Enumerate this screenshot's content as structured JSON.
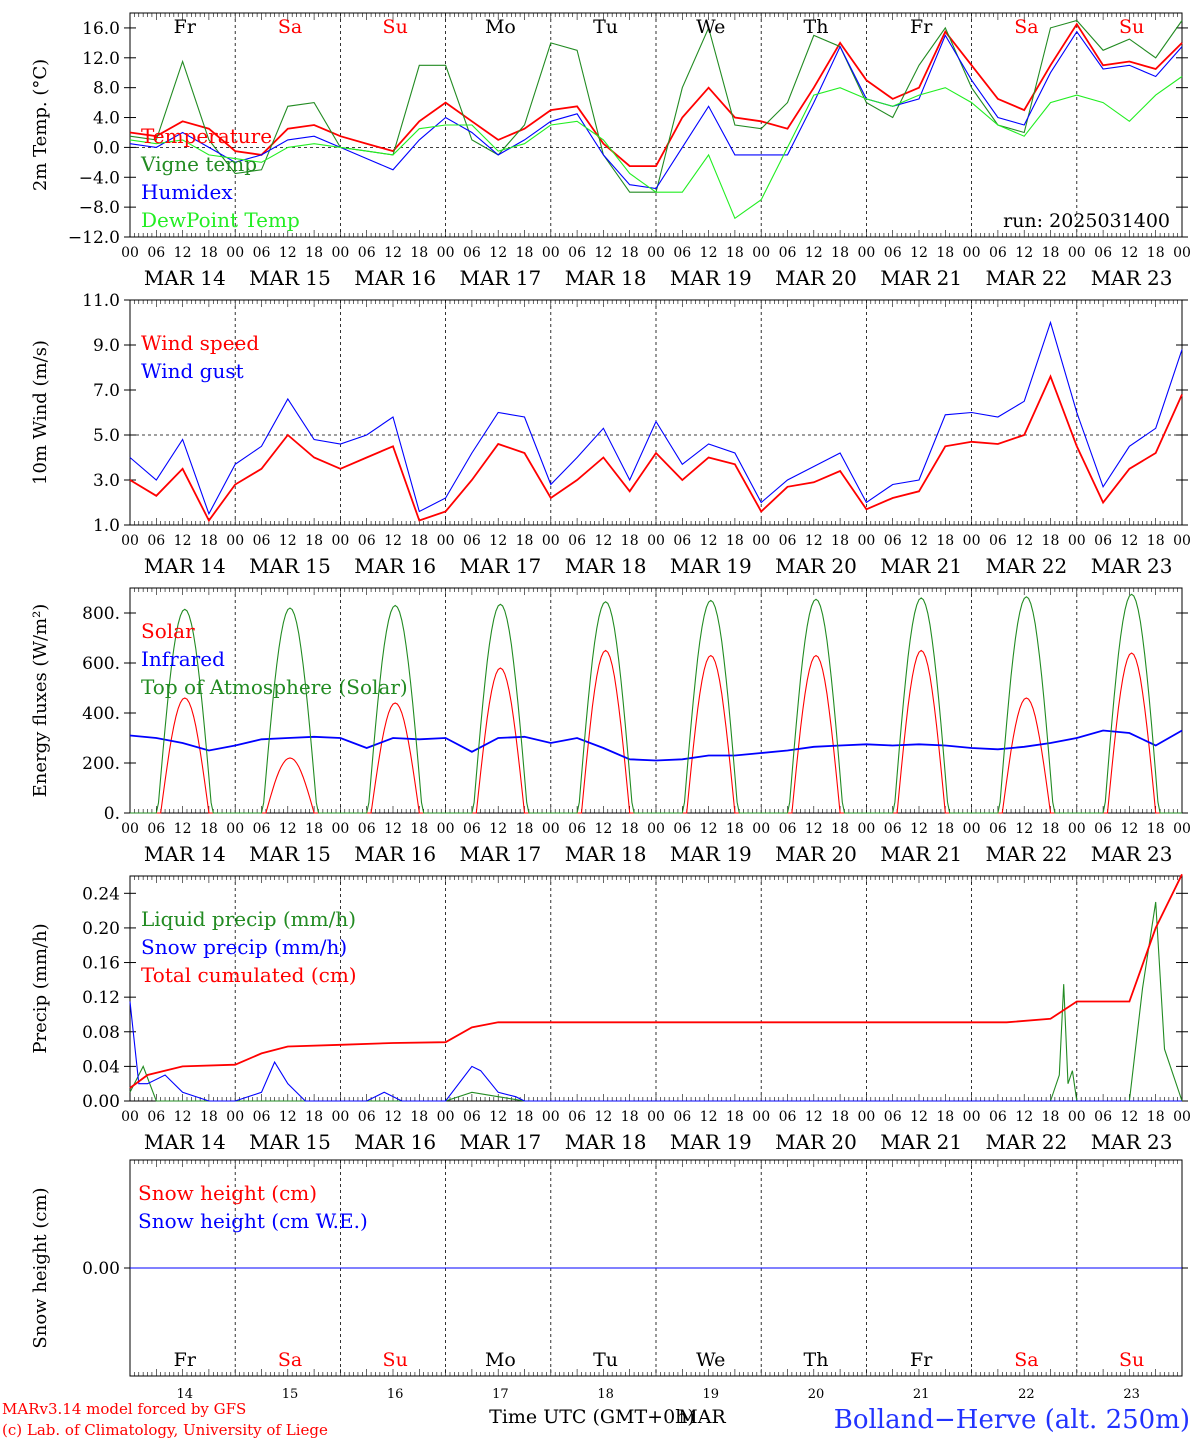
{
  "colors": {
    "red": "#ff0000",
    "green": "#228b22",
    "blue": "#0000ff",
    "light_green": "#22ee22",
    "black": "#000000"
  },
  "chart_data": [
    {
      "id": "temp",
      "type": "line",
      "ylabel": "2m Temp. (°C)",
      "ylim": [
        -12,
        18
      ],
      "ticks": [
        "16.0",
        "12.0",
        "8.0",
        "4.0",
        "0.0",
        "−4.0",
        "−8.0",
        "−12.0"
      ],
      "tick_values": [
        16,
        12,
        8,
        4,
        0,
        -4,
        -8,
        -12
      ],
      "dashed_ref": 0,
      "annotation": "run: 2025031400",
      "series": [
        {
          "name": "Temperature",
          "color": "#ff0000",
          "x": [
            0,
            6,
            12,
            18,
            24,
            30,
            36,
            42,
            48,
            54,
            60,
            66,
            72,
            78,
            84,
            90,
            96,
            102,
            108,
            114,
            120,
            126,
            132,
            138,
            144,
            150,
            156,
            162,
            168,
            174,
            180,
            186,
            192,
            198,
            204,
            210,
            216,
            222,
            228,
            234,
            240
          ],
          "y": [
            2,
            1.5,
            3.5,
            2.5,
            -0.5,
            -1,
            2.5,
            3,
            1.5,
            0.5,
            -0.5,
            3.5,
            6,
            3.5,
            1,
            2.5,
            5,
            5.5,
            0.5,
            -2.5,
            -2.5,
            4,
            8,
            4,
            3.5,
            2.5,
            8,
            14,
            9,
            6.5,
            8,
            15.5,
            11,
            6.5,
            5,
            11,
            16.5,
            11,
            11.5,
            10.5,
            14
          ]
        },
        {
          "name": "Vigne temp",
          "color": "#228b22",
          "x": [
            0,
            6,
            12,
            18,
            24,
            30,
            36,
            42,
            48,
            54,
            60,
            66,
            72,
            78,
            84,
            90,
            96,
            102,
            108,
            114,
            120,
            126,
            132,
            138,
            144,
            150,
            156,
            162,
            168,
            174,
            180,
            186,
            192,
            198,
            204,
            210,
            216,
            222,
            228,
            234,
            240
          ],
          "y": [
            1.5,
            1,
            11.5,
            1,
            -3.5,
            -3,
            5.5,
            6,
            0,
            -0.5,
            -1,
            11,
            11,
            1,
            -1,
            3,
            14,
            13,
            -1,
            -6,
            -6,
            8,
            16,
            3,
            2.5,
            6,
            15,
            13.5,
            6,
            4,
            11,
            16,
            8,
            3,
            2,
            16,
            17,
            13,
            14.5,
            12,
            17
          ]
        },
        {
          "name": "Humidex",
          "color": "#0000ff",
          "x": [
            0,
            6,
            12,
            18,
            24,
            30,
            36,
            42,
            48,
            54,
            60,
            66,
            72,
            78,
            84,
            90,
            96,
            102,
            108,
            114,
            120,
            126,
            132,
            138,
            144,
            150,
            156,
            162,
            168,
            174,
            180,
            186,
            192,
            198,
            204,
            210,
            216,
            222,
            228,
            234,
            240
          ],
          "y": [
            0.5,
            0,
            2,
            0,
            -2,
            -1,
            1,
            1.5,
            0,
            -1.5,
            -3,
            1,
            4,
            2,
            -1,
            1,
            3.5,
            4.5,
            -1,
            -5,
            -5.5,
            0,
            5.5,
            -1,
            -1,
            -1,
            6,
            13.5,
            6.5,
            5.5,
            6.5,
            15,
            9,
            4,
            3,
            10,
            15.5,
            10.5,
            11,
            9.5,
            13.5
          ]
        },
        {
          "name": "DewPoint Temp",
          "color": "#22ee22",
          "x": [
            0,
            6,
            12,
            18,
            24,
            30,
            36,
            42,
            48,
            54,
            60,
            66,
            72,
            78,
            84,
            90,
            96,
            102,
            108,
            114,
            120,
            126,
            132,
            138,
            144,
            150,
            156,
            162,
            168,
            174,
            180,
            186,
            192,
            198,
            204,
            210,
            216,
            222,
            228,
            234,
            240
          ],
          "y": [
            1,
            0.5,
            1,
            -1,
            -1.5,
            -2,
            0,
            0.5,
            0,
            -0.5,
            -1,
            2.5,
            3,
            3,
            -0.5,
            0.5,
            3,
            3.5,
            1,
            -3.5,
            -6,
            -6,
            -1,
            -9.5,
            -7,
            0,
            7,
            8,
            6.5,
            5.5,
            7,
            8,
            6,
            3,
            1.5,
            6,
            7,
            6,
            3.5,
            7,
            9.5
          ]
        }
      ]
    },
    {
      "id": "wind",
      "type": "line",
      "ylabel": "10m Wind (m/s)",
      "ylim": [
        1,
        11
      ],
      "ticks": [
        "11.0",
        "9.0",
        "7.0",
        "5.0",
        "3.0",
        "1.0"
      ],
      "tick_values": [
        11,
        9,
        7,
        5,
        3,
        1
      ],
      "dashed_ref": 5,
      "series": [
        {
          "name": "Wind speed",
          "color": "#ff0000",
          "x": [
            0,
            6,
            12,
            18,
            24,
            30,
            36,
            42,
            48,
            54,
            60,
            66,
            72,
            78,
            84,
            90,
            96,
            102,
            108,
            114,
            120,
            126,
            132,
            138,
            144,
            150,
            156,
            162,
            168,
            174,
            180,
            186,
            192,
            198,
            204,
            210,
            216,
            222,
            228,
            234,
            240
          ],
          "y": [
            3,
            2.3,
            3.5,
            1.2,
            2.8,
            3.5,
            5,
            4,
            3.5,
            4,
            4.5,
            1.2,
            1.6,
            3,
            4.6,
            4.2,
            2.2,
            3,
            4,
            2.5,
            4.2,
            3,
            4,
            3.7,
            1.6,
            2.7,
            2.9,
            3.4,
            1.7,
            2.2,
            2.5,
            4.5,
            4.7,
            4.6,
            5,
            7.6,
            4.5,
            2,
            3.5,
            4.2,
            6.8
          ]
        },
        {
          "name": "Wind gust",
          "color": "#0000ff",
          "x": [
            0,
            6,
            12,
            18,
            24,
            30,
            36,
            42,
            48,
            54,
            60,
            66,
            72,
            78,
            84,
            90,
            96,
            102,
            108,
            114,
            120,
            126,
            132,
            138,
            144,
            150,
            156,
            162,
            168,
            174,
            180,
            186,
            192,
            198,
            204,
            210,
            216,
            222,
            228,
            234,
            240
          ],
          "y": [
            4,
            3,
            4.8,
            1.5,
            3.7,
            4.5,
            6.6,
            4.8,
            4.6,
            5,
            5.8,
            1.6,
            2.2,
            4.2,
            6,
            5.8,
            2.8,
            4,
            5.3,
            3,
            5.6,
            3.7,
            4.6,
            4.2,
            2,
            3,
            3.6,
            4.2,
            2,
            2.8,
            3,
            5.9,
            6,
            5.8,
            6.5,
            10,
            6,
            2.7,
            4.5,
            5.3,
            8.8
          ]
        }
      ]
    },
    {
      "id": "energy",
      "type": "line",
      "ylabel": "Energy fluxes (W/m²)",
      "ylim": [
        0,
        900
      ],
      "ticks": [
        "800.",
        "600.",
        "400.",
        "200.",
        "0."
      ],
      "tick_values": [
        800,
        600,
        400,
        200,
        0
      ],
      "series": [
        {
          "name": "Solar",
          "color": "#ff0000",
          "days_peak": [
            460,
            220,
            440,
            580,
            650,
            630,
            630,
            650,
            460,
            640
          ]
        },
        {
          "name": "Infrared",
          "color": "#0000ff",
          "x": [
            0,
            6,
            12,
            18,
            24,
            30,
            36,
            42,
            48,
            54,
            60,
            66,
            72,
            78,
            84,
            90,
            96,
            102,
            108,
            114,
            120,
            126,
            132,
            138,
            144,
            150,
            156,
            162,
            168,
            174,
            180,
            186,
            192,
            198,
            204,
            210,
            216,
            222,
            228,
            234,
            240
          ],
          "y": [
            310,
            300,
            280,
            250,
            270,
            295,
            300,
            305,
            300,
            260,
            300,
            295,
            300,
            245,
            300,
            305,
            280,
            300,
            260,
            215,
            210,
            215,
            230,
            230,
            240,
            250,
            265,
            270,
            275,
            270,
            275,
            270,
            260,
            255,
            265,
            280,
            300,
            330,
            320,
            270,
            330
          ]
        },
        {
          "name": "Top of Atmosphere (Solar)",
          "color": "#228b22",
          "days_peak": [
            815,
            820,
            830,
            835,
            845,
            850,
            855,
            860,
            865,
            875
          ]
        }
      ]
    },
    {
      "id": "precip",
      "type": "line",
      "ylabel": "Precip (mm/h)",
      "ylim": [
        0,
        0.26
      ],
      "ticks": [
        "0.24",
        "0.20",
        "0.16",
        "0.12",
        "0.08",
        "0.04",
        "0.00"
      ],
      "tick_values": [
        0.24,
        0.2,
        0.16,
        0.12,
        0.08,
        0.04,
        0.0
      ],
      "series": [
        {
          "name": "Liquid precip (mm/h)",
          "color": "#228b22",
          "x": [
            0,
            3,
            6,
            12,
            18,
            24,
            30,
            36,
            48,
            60,
            72,
            78,
            84,
            90,
            96,
            210,
            212,
            213,
            214,
            215,
            216,
            222,
            228,
            231,
            234,
            236,
            240
          ],
          "y": [
            0.01,
            0.04,
            0,
            0,
            0,
            0,
            0,
            0,
            0,
            0,
            0,
            0.01,
            0.005,
            0,
            0,
            0,
            0.03,
            0.135,
            0.02,
            0.035,
            0,
            0,
            0,
            0.13,
            0.23,
            0.06,
            0
          ]
        },
        {
          "name": "Snow precip (mm/h)",
          "color": "#0000ff",
          "x": [
            0,
            2,
            4,
            8,
            12,
            18,
            24,
            30,
            33,
            36,
            40,
            48,
            54,
            58,
            62,
            72,
            78,
            80,
            84,
            88,
            90,
            96,
            240
          ],
          "y": [
            0.115,
            0.02,
            0.02,
            0.03,
            0.01,
            0,
            0,
            0.01,
            0.045,
            0.02,
            0,
            0,
            0,
            0.01,
            0,
            0,
            0.04,
            0.035,
            0.01,
            0.005,
            0,
            0,
            0
          ]
        },
        {
          "name": "Total cumulated (cm)",
          "color": "#ff0000",
          "x": [
            0,
            4,
            12,
            24,
            30,
            36,
            48,
            60,
            72,
            78,
            84,
            96,
            120,
            144,
            168,
            192,
            200,
            210,
            216,
            222,
            228,
            234,
            240
          ],
          "y": [
            0.015,
            0.03,
            0.04,
            0.042,
            0.055,
            0.063,
            0.065,
            0.067,
            0.068,
            0.085,
            0.091,
            0.091,
            0.091,
            0.091,
            0.091,
            0.091,
            0.091,
            0.095,
            0.115,
            0.115,
            0.115,
            0.2,
            0.262
          ]
        }
      ]
    },
    {
      "id": "snow",
      "type": "line",
      "ylabel": "Snow height (cm)",
      "ticks": [
        "0.00"
      ],
      "tick_values": [
        0
      ],
      "series": [
        {
          "name": "Snow height (cm)",
          "color": "#ff0000",
          "x": [
            0,
            240
          ],
          "y": [
            0,
            0
          ]
        },
        {
          "name": "Snow height (cm W.E.)",
          "color": "#0000ff",
          "x": [
            0,
            240
          ],
          "y": [
            0,
            0
          ]
        }
      ]
    }
  ],
  "x_axis": {
    "hour_labels": [
      "00",
      "06",
      "12",
      "18"
    ],
    "last_label": "00",
    "dates": [
      "MAR 14",
      "MAR 15",
      "MAR 16",
      "MAR 17",
      "MAR 18",
      "MAR 19",
      "MAR 20",
      "MAR 21",
      "MAR 22",
      "MAR 23"
    ],
    "day_names": [
      "Fr",
      "Sa",
      "Su",
      "Mo",
      "Tu",
      "We",
      "Th",
      "Fr",
      "Sa",
      "Su"
    ],
    "day_numbers": [
      "14",
      "15",
      "16",
      "17",
      "18",
      "19",
      "20",
      "21",
      "22",
      "23"
    ],
    "weekend_color": "#ff0000",
    "weekday_color": "#000000",
    "title": "Time UTC (GMT+0h)",
    "month": "MAR"
  },
  "footer": {
    "model": "MARv3.14 model forced by GFS",
    "copyright": "(c) Lab. of Climatology, University of Liege",
    "location": "Bolland−Herve (alt. 250m)"
  }
}
